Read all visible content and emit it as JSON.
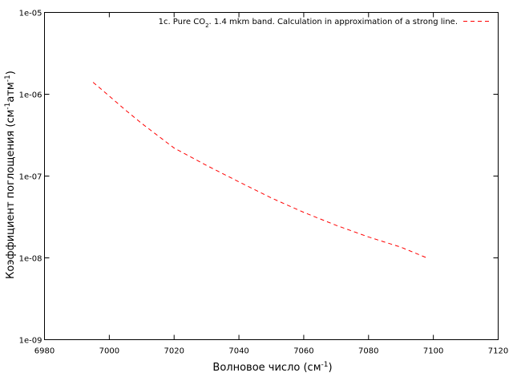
{
  "chart_data": {
    "type": "line",
    "xlabel": {
      "text": "Волновое число (см",
      "sup": "-1",
      "tail": ")"
    },
    "ylabel": {
      "a": "Коэффициент поглощения (см",
      "sup1": "-1",
      "b": "атм",
      "sup2": "-1",
      "c": ")"
    },
    "xlim": [
      6980,
      7120
    ],
    "ylim": [
      1e-09,
      1e-05
    ],
    "yscale": "log",
    "grid": false,
    "legend_position": "top-right",
    "x_ticks": [
      6980,
      7000,
      7020,
      7040,
      7060,
      7080,
      7100,
      7120
    ],
    "x_tick_labels": [
      "6980",
      "7000",
      "7020",
      "7040",
      "7060",
      "7080",
      "7100",
      "7120"
    ],
    "y_ticks": [
      1e-09,
      1e-08,
      1e-07,
      1e-06,
      1e-05
    ],
    "y_tick_labels": [
      "1e-09",
      "1e-08",
      "1e-07",
      "1e-06",
      "1e-05"
    ],
    "series": [
      {
        "name": {
          "a": "1c. Pure CO",
          "sub": "2",
          "b": ". 1.4 mkm band. Calculation in approximation of a strong line."
        },
        "color": "#ff0000",
        "dash": "dashed",
        "x": [
          6995,
          7000,
          7005,
          7010,
          7020,
          7030,
          7040,
          7050,
          7060,
          7070,
          7080,
          7090,
          7098
        ],
        "y": [
          1.4e-06,
          9.5e-07,
          6.4e-07,
          4.4e-07,
          2.2e-07,
          1.35e-07,
          8.5e-08,
          5.4e-08,
          3.6e-08,
          2.5e-08,
          1.8e-08,
          1.35e-08,
          1e-08
        ]
      }
    ]
  }
}
